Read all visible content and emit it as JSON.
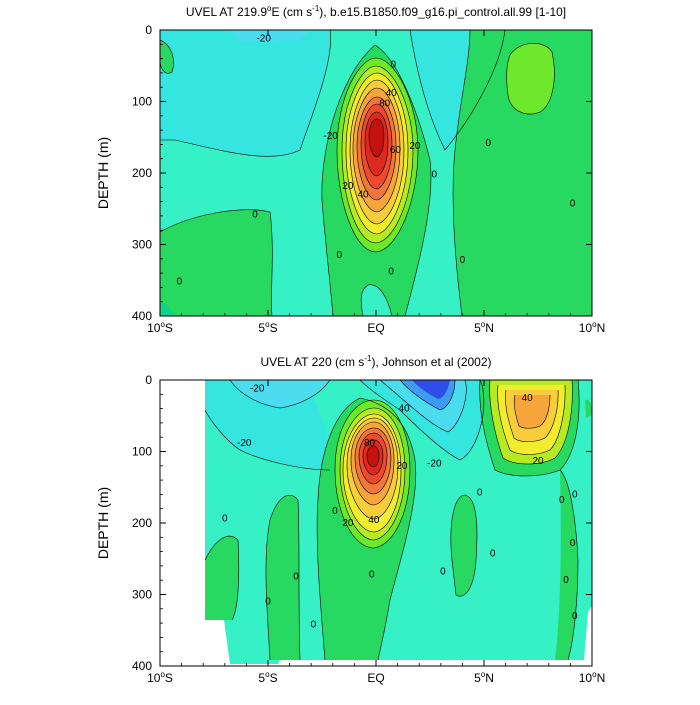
{
  "chart_data": [
    {
      "type": "filled-contour",
      "title_prefix": "UVEL AT 219.9",
      "title_deg": "o",
      "title_mid": "E (cm s",
      "title_exp": "-1",
      "title_suffix": "), b.e15.B1850.f09_g16.pi_control.all.99 [1-10]",
      "ylabel": "DEPTH (m)",
      "xlim": [
        -10,
        10
      ],
      "ylim": [
        0,
        400
      ],
      "y_reversed": true,
      "xticks": [
        {
          "value": -10,
          "num": "10",
          "deg": "o",
          "hem": "S"
        },
        {
          "value": -5,
          "num": "5",
          "deg": "o",
          "hem": "S"
        },
        {
          "value": 0,
          "num": "EQ",
          "deg": "",
          "hem": ""
        },
        {
          "value": 5,
          "num": "5",
          "deg": "o",
          "hem": "N"
        },
        {
          "value": 10,
          "num": "10",
          "deg": "o",
          "hem": "N"
        }
      ],
      "yticks": [
        "0",
        "100",
        "200",
        "300",
        "400"
      ],
      "contour_interval": 10,
      "jet_core": {
        "lat": 0.0,
        "depth": 140,
        "max_speed": 90
      },
      "contour_labels": [
        {
          "text": "-20",
          "lat": -5.2,
          "depth": 12
        },
        {
          "text": "0",
          "lat": 0.8,
          "depth": 48
        },
        {
          "text": "40",
          "lat": 0.7,
          "depth": 88
        },
        {
          "text": "80",
          "lat": 0.4,
          "depth": 103
        },
        {
          "text": "-20",
          "lat": -2.1,
          "depth": 148
        },
        {
          "text": "60",
          "lat": 0.9,
          "depth": 168
        },
        {
          "text": "20",
          "lat": 1.8,
          "depth": 162
        },
        {
          "text": "0",
          "lat": 2.7,
          "depth": 202
        },
        {
          "text": "20",
          "lat": -1.3,
          "depth": 218
        },
        {
          "text": "40",
          "lat": -0.6,
          "depth": 230
        },
        {
          "text": "0",
          "lat": -5.6,
          "depth": 258
        },
        {
          "text": "0",
          "lat": -1.7,
          "depth": 315
        },
        {
          "text": "0",
          "lat": 0.7,
          "depth": 338
        },
        {
          "text": "0",
          "lat": 4.0,
          "depth": 322
        },
        {
          "text": "0",
          "lat": 5.2,
          "depth": 158
        },
        {
          "text": "0",
          "lat": 9.1,
          "depth": 243
        },
        {
          "text": "0",
          "lat": -9.1,
          "depth": 352
        }
      ]
    },
    {
      "type": "filled-contour",
      "title": "UVEL AT 220 (cm s",
      "title_exp": "-1",
      "title_suffix": "), Johnson et al (2002)",
      "ylabel": "DEPTH (m)",
      "xlim": [
        -10,
        10
      ],
      "ylim": [
        0,
        400
      ],
      "y_reversed": true,
      "xticks": [
        {
          "value": -10,
          "num": "10",
          "deg": "o",
          "hem": "S"
        },
        {
          "value": -5,
          "num": "5",
          "deg": "o",
          "hem": "S"
        },
        {
          "value": 0,
          "num": "EQ",
          "deg": "",
          "hem": ""
        },
        {
          "value": 5,
          "num": "5",
          "deg": "o",
          "hem": "N"
        },
        {
          "value": 10,
          "num": "10",
          "deg": "o",
          "hem": "N"
        }
      ],
      "yticks": [
        "0",
        "100",
        "200",
        "300",
        "400"
      ],
      "contour_interval": 10,
      "jet_core": {
        "lat": -0.2,
        "depth": 112,
        "max_speed": 90
      },
      "contour_labels": [
        {
          "text": "-20",
          "lat": -5.5,
          "depth": 12
        },
        {
          "text": "-20",
          "lat": -6.1,
          "depth": 88
        },
        {
          "text": "40",
          "lat": 1.3,
          "depth": 40
        },
        {
          "text": "-20",
          "lat": 2.7,
          "depth": 117
        },
        {
          "text": "80",
          "lat": -0.3,
          "depth": 88
        },
        {
          "text": "20",
          "lat": 1.2,
          "depth": 120
        },
        {
          "text": "20",
          "lat": 7.5,
          "depth": 113
        },
        {
          "text": "40",
          "lat": 7.0,
          "depth": 25
        },
        {
          "text": "0",
          "lat": 4.8,
          "depth": 157
        },
        {
          "text": "20",
          "lat": -1.3,
          "depth": 200
        },
        {
          "text": "40",
          "lat": -0.1,
          "depth": 196
        },
        {
          "text": "0",
          "lat": -7.0,
          "depth": 194
        },
        {
          "text": "0",
          "lat": -1.9,
          "depth": 183
        },
        {
          "text": "0",
          "lat": 5.4,
          "depth": 243
        },
        {
          "text": "0",
          "lat": 3.1,
          "depth": 268
        },
        {
          "text": "0",
          "lat": -0.2,
          "depth": 272
        },
        {
          "text": "0",
          "lat": -5.0,
          "depth": 310
        },
        {
          "text": "0",
          "lat": -3.7,
          "depth": 275
        },
        {
          "text": "0",
          "lat": -2.9,
          "depth": 342
        },
        {
          "text": "0",
          "lat": 8.6,
          "depth": 168
        },
        {
          "text": "0",
          "lat": 9.2,
          "depth": 160
        },
        {
          "text": "0",
          "lat": 9.1,
          "depth": 228
        },
        {
          "text": "0",
          "lat": 8.8,
          "depth": 280
        },
        {
          "text": "0",
          "lat": 9.2,
          "depth": 330
        }
      ]
    }
  ]
}
